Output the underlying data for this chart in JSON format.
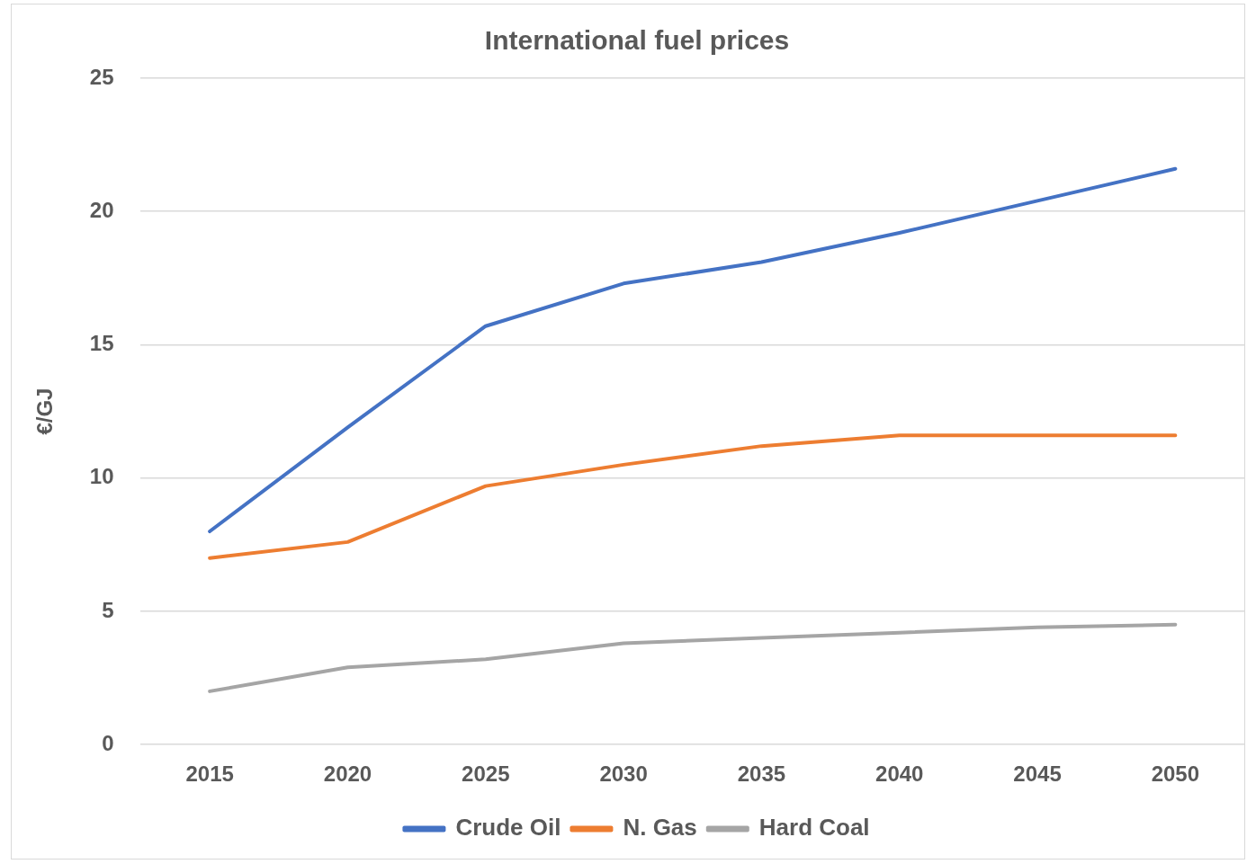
{
  "chart_data": {
    "type": "line",
    "title": "International fuel prices",
    "ylabel": "€/GJ",
    "categories": [
      "2015",
      "2020",
      "2025",
      "2030",
      "2035",
      "2040",
      "2045",
      "2050"
    ],
    "series": [
      {
        "name": "Crude Oil",
        "color": "#4472c4",
        "values": [
          8.0,
          11.9,
          15.7,
          17.3,
          18.1,
          19.2,
          20.4,
          21.6
        ]
      },
      {
        "name": "N. Gas",
        "color": "#ed7d31",
        "values": [
          7.0,
          7.6,
          9.7,
          10.5,
          11.2,
          11.6,
          11.6,
          11.6
        ]
      },
      {
        "name": "Hard Coal",
        "color": "#a5a5a5",
        "values": [
          2.0,
          2.9,
          3.2,
          3.8,
          4.0,
          4.2,
          4.4,
          4.5
        ]
      }
    ],
    "ylim": [
      0,
      25
    ],
    "yticks": [
      0,
      5,
      10,
      15,
      20,
      25
    ],
    "grid": "y",
    "legend": "bottom",
    "marker": "none",
    "line_style": "solid"
  }
}
